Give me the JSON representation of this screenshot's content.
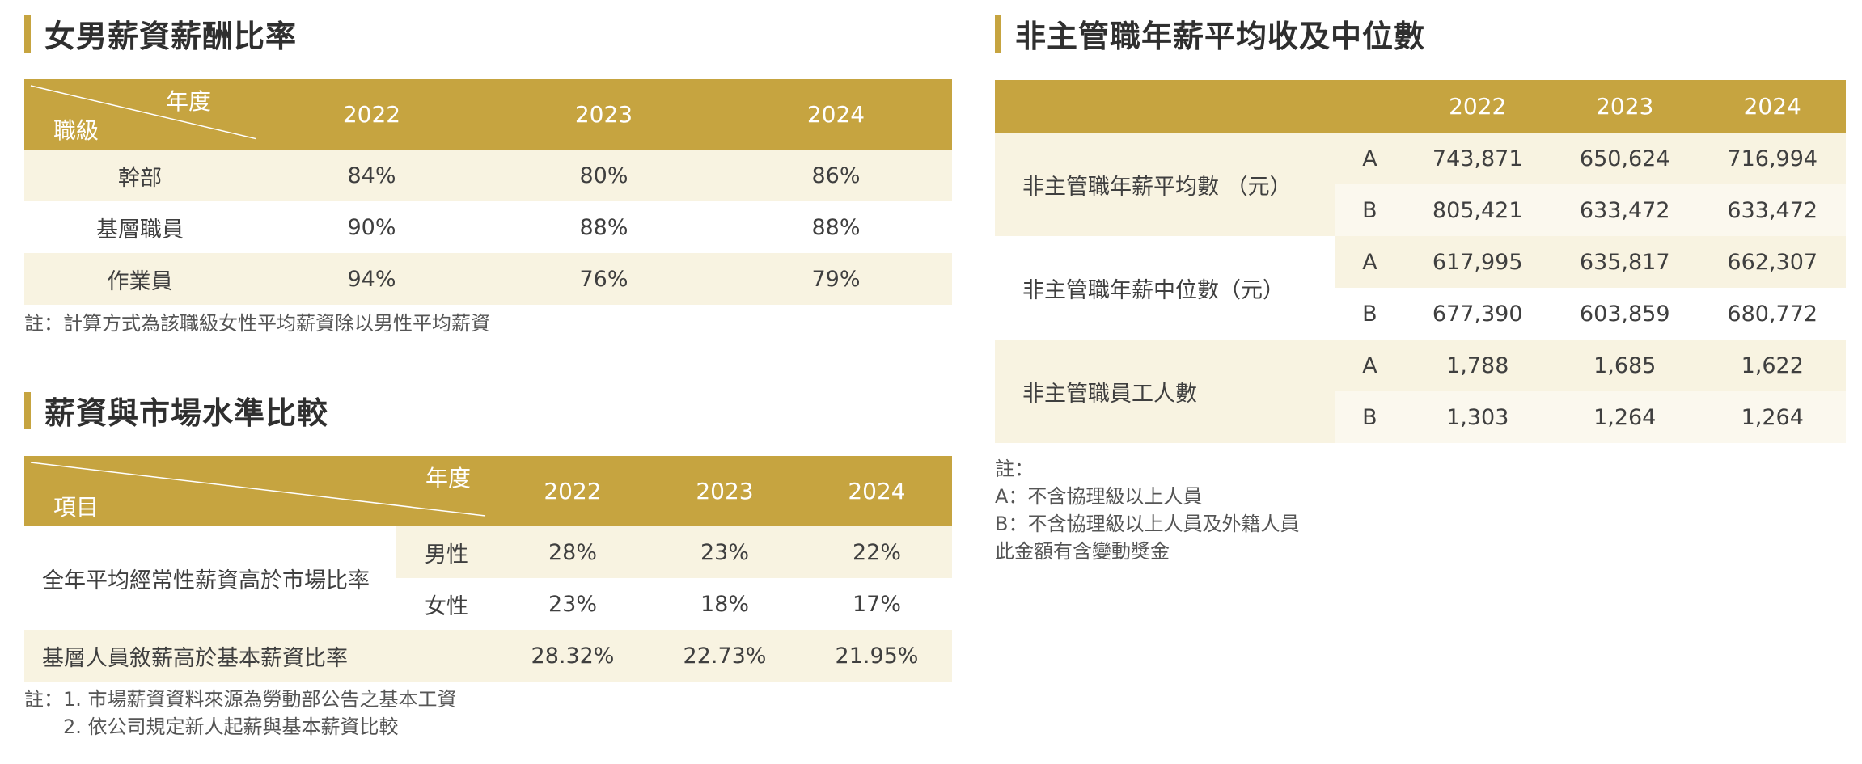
{
  "section1": {
    "title": "女男薪資薪酬比率",
    "header": {
      "diag_top": "年度",
      "diag_bottom": "職級",
      "years": [
        "2022",
        "2023",
        "2024"
      ]
    },
    "rows": [
      {
        "label": "幹部",
        "values": [
          "84%",
          "80%",
          "86%"
        ]
      },
      {
        "label": "基層職員",
        "values": [
          "90%",
          "88%",
          "88%"
        ]
      },
      {
        "label": "作業員",
        "values": [
          "94%",
          "76%",
          "79%"
        ]
      }
    ],
    "note": "註：計算方式為該職級女性平均薪資除以男性平均薪資"
  },
  "section2": {
    "title": "薪資與市場水準比較",
    "header": {
      "diag_top": "年度",
      "diag_bottom": "項目",
      "years": [
        "2022",
        "2023",
        "2024"
      ]
    },
    "group_label": "全年平均經常性薪資高於市場比率",
    "rows": [
      {
        "sub": "男性",
        "values": [
          "28%",
          "23%",
          "22%"
        ]
      },
      {
        "sub": "女性",
        "values": [
          "23%",
          "18%",
          "17%"
        ]
      }
    ],
    "row3": {
      "label": "基層人員敘薪高於基本薪資比率",
      "values": [
        "28.32%",
        "22.73%",
        "21.95%"
      ]
    },
    "note_lines": [
      "註：1. 市場薪資資料來源為勞動部公告之基本工資",
      "　　2. 依公司規定新人起薪與基本薪資比較"
    ]
  },
  "section3": {
    "title": "非主管職年薪平均收及中位數",
    "years": [
      "2022",
      "2023",
      "2024"
    ],
    "groups": [
      {
        "label": "非主管職年薪平均數 （元）",
        "rows": [
          {
            "sub": "A",
            "values": [
              "743,871",
              "650,624",
              "716,994"
            ]
          },
          {
            "sub": "B",
            "values": [
              "805,421",
              "633,472",
              "633,472"
            ]
          }
        ]
      },
      {
        "label": "非主管職年薪中位數（元）",
        "rows": [
          {
            "sub": "A",
            "values": [
              "617,995",
              "635,817",
              "662,307"
            ]
          },
          {
            "sub": "B",
            "values": [
              "677,390",
              "603,859",
              "680,772"
            ]
          }
        ]
      },
      {
        "label": "非主管職員工人數",
        "rows": [
          {
            "sub": "A",
            "values": [
              "1,788",
              "1,685",
              "1,622"
            ]
          },
          {
            "sub": "B",
            "values": [
              "1,303",
              "1,264",
              "1,264"
            ]
          }
        ]
      }
    ],
    "note_lines": [
      "註：",
      "A：不含協理級以上人員",
      "B：不含協理級以上人員及外籍人員",
      "此金額有含變動獎金"
    ]
  },
  "colors": {
    "gold": "#c6a440",
    "cream": "#f8f3e1",
    "text": "#3f3f3f"
  }
}
